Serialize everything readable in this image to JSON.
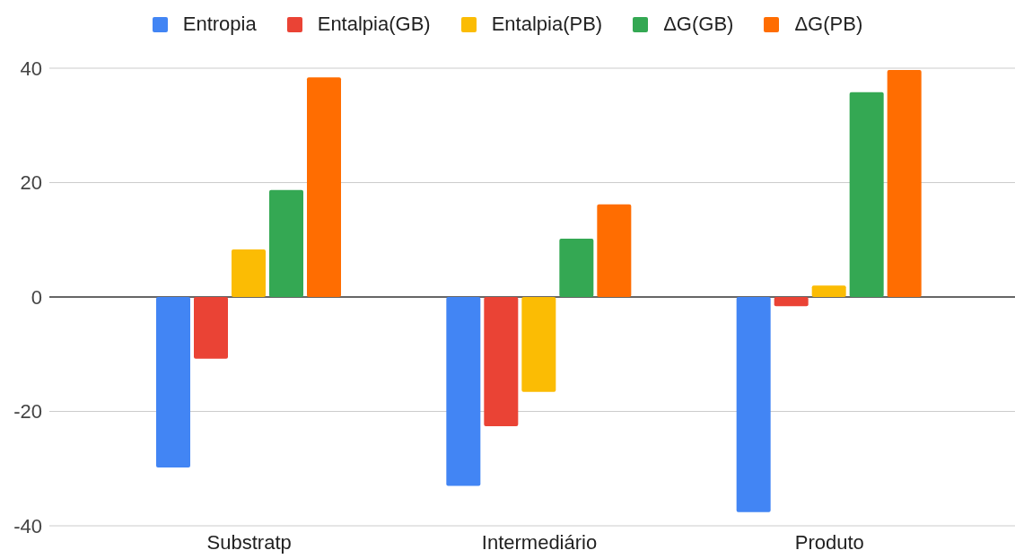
{
  "chart_data": {
    "type": "bar",
    "categories": [
      "Substratp",
      "Intermediário",
      "Produto"
    ],
    "series": [
      {
        "name": "Entropia",
        "color": "#4285f4",
        "values": [
          -29.8,
          -33.0,
          -37.6
        ]
      },
      {
        "name": "Entalpia(GB)",
        "color": "#ea4335",
        "values": [
          -10.8,
          -22.6,
          -1.6
        ]
      },
      {
        "name": "Entalpia(PB)",
        "color": "#fbbc04",
        "values": [
          8.3,
          -16.6,
          2.0
        ]
      },
      {
        "name": "ΔG(GB)",
        "color": "#34a853",
        "values": [
          18.7,
          10.2,
          35.8
        ]
      },
      {
        "name": "ΔG(PB)",
        "color": "#ff6d01",
        "values": [
          38.4,
          16.2,
          39.7
        ]
      }
    ],
    "ylim": [
      -40,
      40
    ],
    "yticks": [
      -40,
      -20,
      0,
      20,
      40
    ],
    "grid": "y",
    "legend": "top"
  }
}
